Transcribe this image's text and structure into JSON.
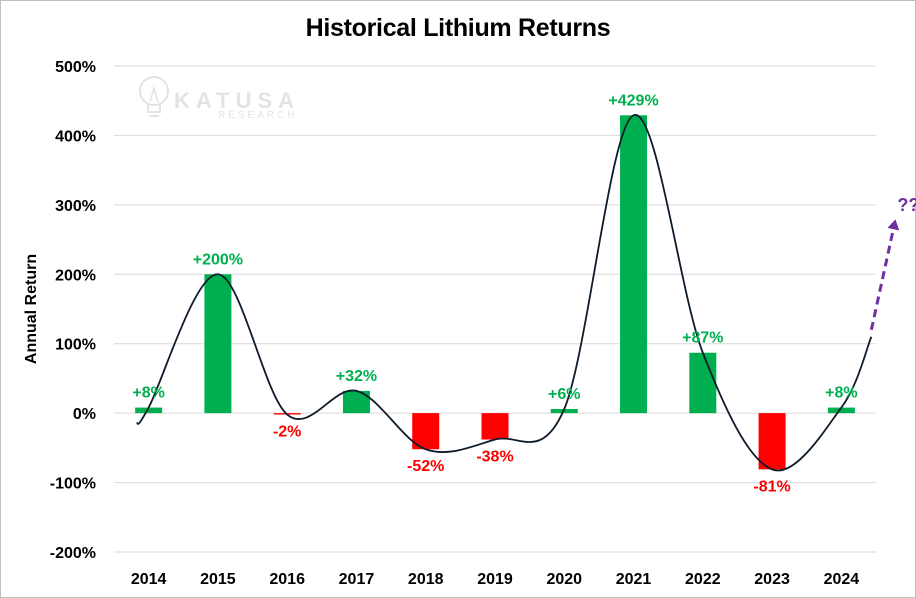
{
  "chart_data": {
    "type": "bar",
    "title": "Historical Lithium Returns",
    "ylabel": "Annual Return",
    "xlabel": "",
    "categories": [
      "2014",
      "2015",
      "2016",
      "2017",
      "2018",
      "2019",
      "2020",
      "2021",
      "2022",
      "2023",
      "2024"
    ],
    "values": [
      8,
      200,
      -2,
      32,
      -52,
      -38,
      6,
      429,
      87,
      -81,
      8
    ],
    "data_labels": [
      "+8%",
      "+200%",
      "-2%",
      "+32%",
      "-52%",
      "-38%",
      "+6%",
      "+429%",
      "+87%",
      "-81%",
      "+8%"
    ],
    "ylim": [
      -200,
      500
    ],
    "yticks": [
      -200,
      -100,
      0,
      100,
      200,
      300,
      400,
      500
    ],
    "ytick_labels": [
      "-200%",
      "-100%",
      "0%",
      "100%",
      "200%",
      "300%",
      "400%",
      "500%"
    ],
    "grid": true,
    "colors": {
      "positive": "#00b050",
      "negative": "#ff0000",
      "trend": "#0d1b2a",
      "arrow": "#7030a0",
      "grid": "#d9d9d9"
    },
    "annotation": "??",
    "watermark": {
      "name": "KATUSA",
      "sub": "RESEARCH"
    }
  }
}
